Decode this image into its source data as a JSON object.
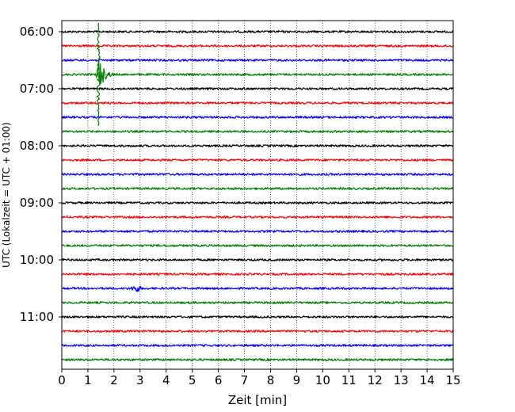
{
  "chart_data": {
    "type": "line",
    "title": "",
    "xlabel": "Zeit  [min]",
    "ylabel": "UTC (Lokalzeit = UTC + 01:00)",
    "xlim": [
      0,
      15
    ],
    "x_ticks": [
      "0",
      "1",
      "2",
      "3",
      "4",
      "5",
      "6",
      "7",
      "8",
      "9",
      "10",
      "11",
      "12",
      "13",
      "14",
      "15"
    ],
    "y_ticks": [
      "06:00",
      "07:00",
      "08:00",
      "09:00",
      "10:00",
      "11:00"
    ],
    "grid": "vertical dotted at each minute",
    "trace_interval_min": 15,
    "colors_cycle": [
      "#000000",
      "#ff0000",
      "#0000ff",
      "#008000"
    ],
    "series": [
      {
        "start": "06:00",
        "color": "#000000"
      },
      {
        "start": "06:15",
        "color": "#ff0000"
      },
      {
        "start": "06:30",
        "color": "#0000ff"
      },
      {
        "start": "06:45",
        "color": "#008000",
        "event": {
          "x": 1.4,
          "amplitude": "large"
        }
      },
      {
        "start": "07:00",
        "color": "#000000"
      },
      {
        "start": "07:15",
        "color": "#ff0000"
      },
      {
        "start": "07:30",
        "color": "#0000ff"
      },
      {
        "start": "07:45",
        "color": "#008000"
      },
      {
        "start": "08:00",
        "color": "#000000"
      },
      {
        "start": "08:15",
        "color": "#ff0000"
      },
      {
        "start": "08:30",
        "color": "#0000ff"
      },
      {
        "start": "08:45",
        "color": "#008000"
      },
      {
        "start": "09:00",
        "color": "#000000"
      },
      {
        "start": "09:15",
        "color": "#ff0000"
      },
      {
        "start": "09:30",
        "color": "#0000ff"
      },
      {
        "start": "09:45",
        "color": "#008000"
      },
      {
        "start": "10:00",
        "color": "#000000"
      },
      {
        "start": "10:15",
        "color": "#ff0000"
      },
      {
        "start": "10:30",
        "color": "#0000ff",
        "event": {
          "x": 2.85,
          "amplitude": "small"
        }
      },
      {
        "start": "10:45",
        "color": "#008000"
      },
      {
        "start": "11:00",
        "color": "#000000"
      },
      {
        "start": "11:15",
        "color": "#ff0000"
      },
      {
        "start": "11:30",
        "color": "#0000ff"
      },
      {
        "start": "11:45",
        "color": "#008000"
      }
    ]
  }
}
